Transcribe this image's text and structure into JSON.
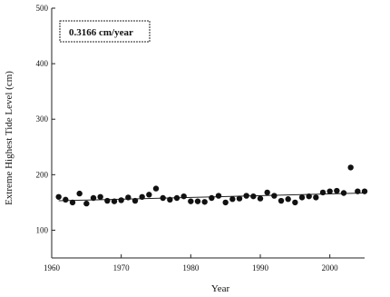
{
  "chart_data": {
    "type": "scatter",
    "xlabel": "Year",
    "ylabel": "Extreme Highest Tide Level (cm)",
    "xlim": [
      1960,
      2005
    ],
    "ylim": [
      50,
      500
    ],
    "x_ticks": [
      1960,
      1970,
      1980,
      1990,
      2000
    ],
    "y_ticks": [
      100,
      200,
      300,
      400,
      500
    ],
    "annotation": "0.3166 cm/year",
    "series": [
      {
        "points": [
          [
            1961,
            160
          ],
          [
            1962,
            155
          ],
          [
            1963,
            150
          ],
          [
            1964,
            166
          ],
          [
            1965,
            148
          ],
          [
            1966,
            158
          ],
          [
            1967,
            160
          ],
          [
            1968,
            153
          ],
          [
            1969,
            152
          ],
          [
            1970,
            154
          ],
          [
            1971,
            159
          ],
          [
            1972,
            153
          ],
          [
            1973,
            160
          ],
          [
            1974,
            164
          ],
          [
            1975,
            175
          ],
          [
            1976,
            158
          ],
          [
            1977,
            155
          ],
          [
            1978,
            158
          ],
          [
            1979,
            161
          ],
          [
            1980,
            152
          ],
          [
            1981,
            152
          ],
          [
            1982,
            151
          ],
          [
            1983,
            158
          ],
          [
            1984,
            162
          ],
          [
            1985,
            150
          ],
          [
            1986,
            156
          ],
          [
            1987,
            157
          ],
          [
            1988,
            162
          ],
          [
            1989,
            161
          ],
          [
            1990,
            157
          ],
          [
            1991,
            168
          ],
          [
            1992,
            162
          ],
          [
            1993,
            153
          ],
          [
            1994,
            156
          ],
          [
            1995,
            150
          ],
          [
            1996,
            159
          ],
          [
            1997,
            161
          ],
          [
            1998,
            159
          ],
          [
            1999,
            168
          ],
          [
            2000,
            170
          ],
          [
            2001,
            171
          ],
          [
            2002,
            167
          ],
          [
            2003,
            213
          ],
          [
            2004,
            170
          ],
          [
            2005,
            170
          ]
        ]
      }
    ],
    "trendline": {
      "x": [
        1961,
        2005
      ],
      "y": [
        153,
        167
      ]
    }
  }
}
